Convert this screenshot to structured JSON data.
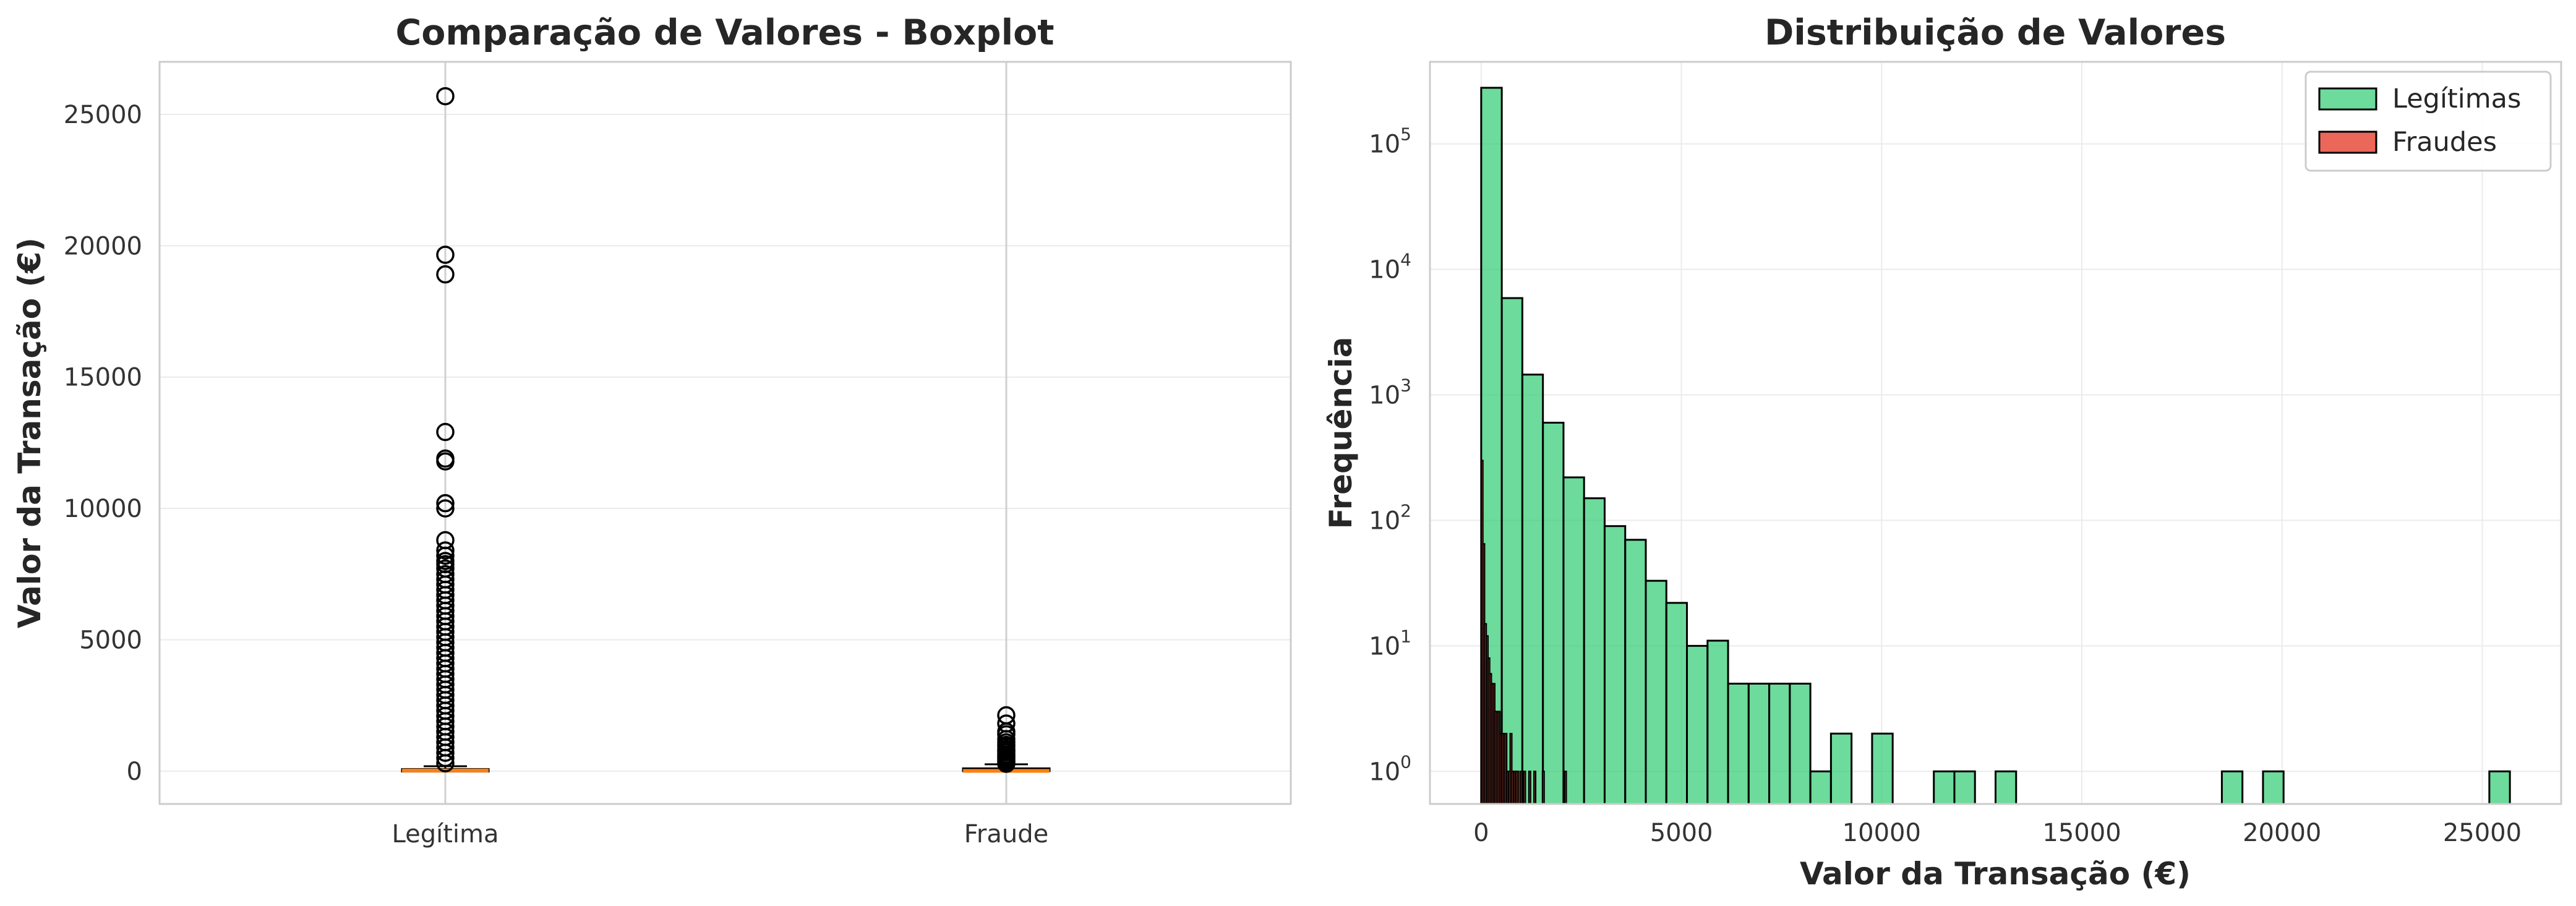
{
  "chart_data": [
    {
      "type": "box",
      "title": "Comparação de Valores - Boxplot",
      "xlabel": "",
      "ylabel": "Valor da Transação (€)",
      "categories": [
        "Legítima",
        "Fraude"
      ],
      "ylim": [
        -1250,
        27000
      ],
      "yticks": [
        0,
        5000,
        10000,
        15000,
        20000,
        25000
      ],
      "grid": true,
      "series": [
        {
          "category": "Legítima",
          "min": 0,
          "q1": 5.6,
          "median": 22,
          "q3": 77,
          "max": 185,
          "outliers": [
            25691,
            19656,
            18910,
            12910,
            11898,
            11790,
            10199,
            10000,
            8790,
            8400,
            8200,
            8000,
            7879,
            7712,
            7500,
            7300,
            7100,
            6900,
            6700,
            6500,
            6300,
            6100,
            5900,
            5700,
            5500,
            5300,
            5100,
            4900,
            4700,
            4500,
            4300,
            4100,
            3900,
            3700,
            3500,
            3300,
            3100,
            2900,
            2700,
            2500,
            2300,
            2100,
            1900,
            1700,
            1500,
            1300,
            1100,
            900,
            700,
            500,
            300
          ]
        },
        {
          "category": "Fraude",
          "min": 0,
          "q1": 1,
          "median": 9.25,
          "q3": 105,
          "max": 261,
          "outliers": [
            2125,
            1809,
            1504,
            1402,
            1218,
            1096,
            996,
            925,
            829,
            776,
            720,
            634,
            592,
            530,
            480,
            420,
            364,
            320,
            280
          ]
        }
      ]
    },
    {
      "type": "histogram",
      "title": "Distribuição de Valores",
      "xlabel": "Valor da Transação (€)",
      "ylabel": "Frequência",
      "yscale": "log",
      "xlim": [
        -1280,
        26970
      ],
      "ylim": [
        0.55,
        450000
      ],
      "xticks": [
        0,
        5000,
        10000,
        15000,
        20000,
        25000
      ],
      "yticks": [
        "10^0",
        "10^1",
        "10^2",
        "10^3",
        "10^4",
        "10^5"
      ],
      "grid": true,
      "legend": "top-right",
      "series": [
        {
          "name": "Legítimas",
          "color": "#2ecc71",
          "bin_width": 513.8,
          "bin_start": 0,
          "counts": [
            279600,
            5900,
            1450,
            600,
            220,
            150,
            90,
            70,
            33,
            22,
            10,
            11,
            5,
            5,
            5,
            5,
            1,
            2,
            0,
            2,
            0,
            0,
            1,
            1,
            0,
            1,
            0,
            0,
            0,
            0,
            0,
            0,
            0,
            0,
            0,
            0,
            1,
            0,
            1,
            0,
            0,
            0,
            0,
            0,
            0,
            0,
            0,
            0,
            0,
            1
          ]
        },
        {
          "name": "Fraudes",
          "color": "#e74c3c",
          "bin_width": 42.5,
          "bin_start": 0,
          "counts": [
            300,
            65,
            15,
            12,
            8,
            6,
            5,
            5,
            3,
            3,
            3,
            2,
            2,
            2,
            2,
            1,
            1,
            2,
            1,
            1,
            1,
            1,
            0,
            1,
            0,
            1,
            0,
            0,
            1,
            0,
            0,
            1,
            0,
            0,
            0,
            0,
            1,
            0,
            0,
            0,
            0,
            0,
            0,
            0,
            0,
            0,
            0,
            0,
            0,
            1
          ]
        }
      ]
    }
  ]
}
